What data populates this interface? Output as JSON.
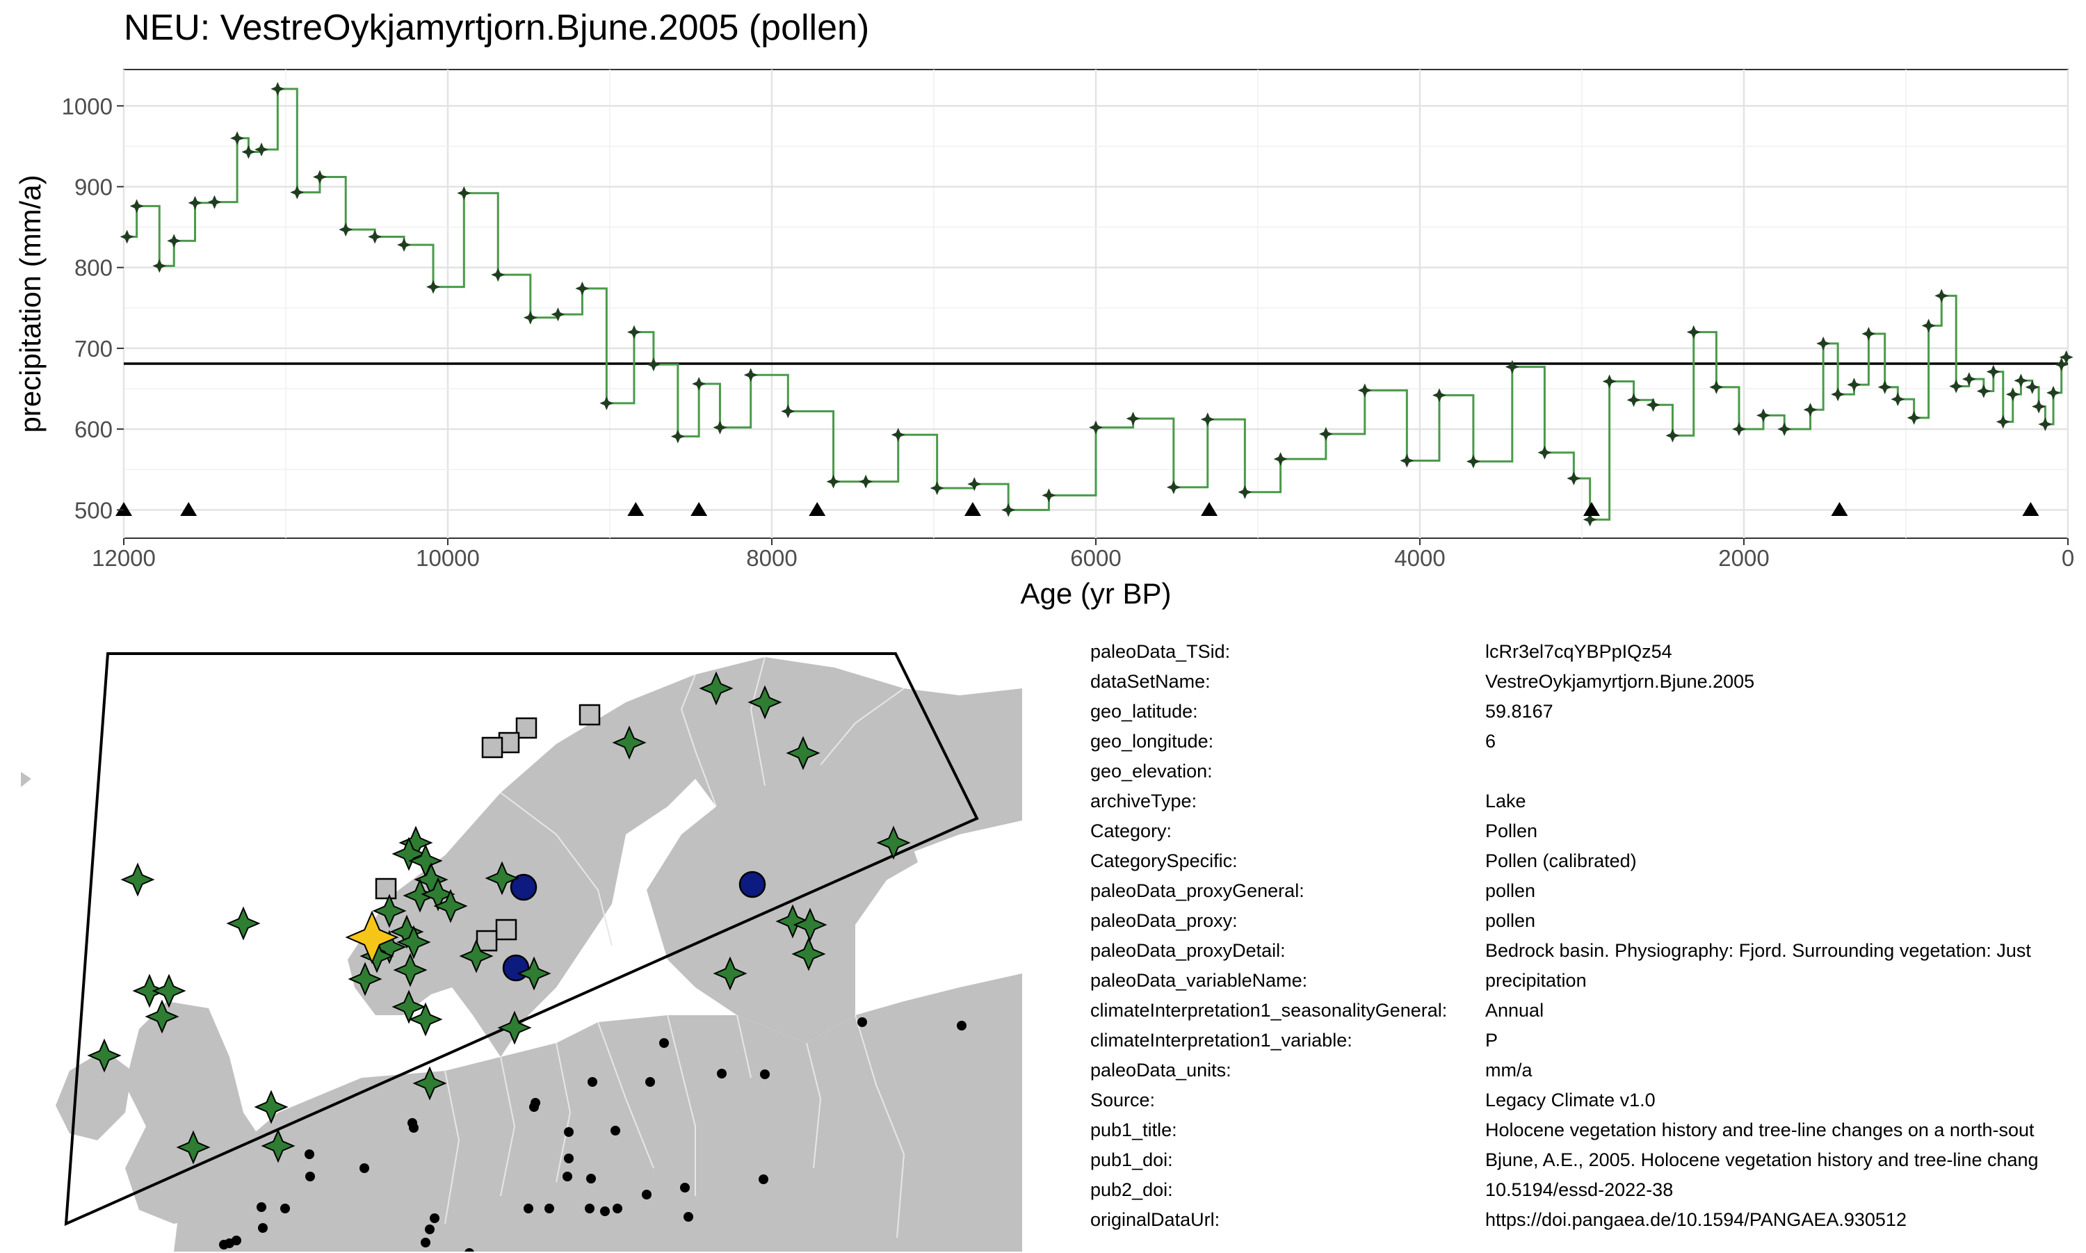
{
  "title": "NEU: VestreOykjamyrtjorn.Bjune.2005 (pollen)",
  "chart_data": {
    "type": "line",
    "style": "step",
    "xlabel": "Age (yr BP)",
    "ylabel": "precipitation (mm/a)",
    "xlim": [
      12000,
      0
    ],
    "ylim": [
      465,
      1045
    ],
    "x_reversed": true,
    "x_ticks": [
      12000,
      10000,
      8000,
      6000,
      4000,
      2000,
      0
    ],
    "y_ticks": [
      500,
      600,
      700,
      800,
      900,
      1000
    ],
    "grid": true,
    "mean_line": 681,
    "line_color": "#4a9a4a",
    "point_color": "#1f3d1f",
    "series": [
      {
        "x": [
          11980,
          11920,
          11780,
          11690,
          11560,
          11440,
          11300,
          11230,
          11150,
          11050,
          10930,
          10790,
          10630,
          10450,
          10270,
          10090,
          9900,
          9690,
          9490,
          9320,
          9170,
          9020,
          8850,
          8730,
          8580,
          8450,
          8320,
          8130,
          7900,
          7620,
          7420,
          7220,
          6980,
          6750,
          6540,
          6290,
          6000,
          5770,
          5520,
          5310,
          5080,
          4860,
          4580,
          4340,
          4080,
          3880,
          3670,
          3430,
          3230,
          3050,
          2950,
          2830,
          2680,
          2560,
          2440,
          2310,
          2170,
          2030,
          1880,
          1750,
          1590,
          1510,
          1420,
          1320,
          1230,
          1130,
          1050,
          950,
          860,
          780,
          690,
          610,
          520,
          460,
          400,
          340,
          290,
          220,
          180,
          140,
          90,
          40,
          10
        ],
        "values": [
          838,
          876,
          802,
          833,
          880,
          881,
          960,
          943,
          946,
          1021,
          893,
          912,
          847,
          838,
          828,
          776,
          892,
          791,
          738,
          742,
          774,
          632,
          720,
          680,
          591,
          656,
          602,
          667,
          622,
          535,
          535,
          593,
          527,
          532,
          500,
          518,
          602,
          613,
          528,
          612,
          522,
          563,
          594,
          648,
          561,
          642,
          560,
          677,
          571,
          539,
          488,
          659,
          636,
          630,
          592,
          720,
          652,
          600,
          617,
          600,
          624,
          706,
          643,
          655,
          718,
          652,
          637,
          614,
          728,
          765,
          653,
          662,
          647,
          671,
          609,
          643,
          660,
          652,
          628,
          606,
          645,
          680,
          689
        ]
      }
    ],
    "age_markers": [
      12000,
      11600,
      8840,
      8450,
      7720,
      6760,
      5300,
      2940,
      1410,
      230
    ]
  },
  "metadata": [
    {
      "key": "paleoData_TSid:",
      "value": "lcRr3el7cqYBPpIQz54"
    },
    {
      "key": "dataSetName:",
      "value": "VestreOykjamyrtjorn.Bjune.2005"
    },
    {
      "key": "geo_latitude:",
      "value": "59.8167"
    },
    {
      "key": "geo_longitude:",
      "value": "6"
    },
    {
      "key": "geo_elevation:",
      "value": ""
    },
    {
      "key": "archiveType:",
      "value": "Lake"
    },
    {
      "key": "Category:",
      "value": "Pollen"
    },
    {
      "key": "CategorySpecific:",
      "value": "Pollen (calibrated)"
    },
    {
      "key": "paleoData_proxyGeneral:",
      "value": "pollen"
    },
    {
      "key": "paleoData_proxy:",
      "value": "pollen"
    },
    {
      "key": "paleoData_proxyDetail:",
      "value": "Bedrock basin. Physiography: Fjord. Surrounding vegetation: Just"
    },
    {
      "key": "paleoData_variableName:",
      "value": "precipitation"
    },
    {
      "key": "climateInterpretation1_seasonalityGeneral:",
      "value": "Annual"
    },
    {
      "key": "climateInterpretation1_variable:",
      "value": "P"
    },
    {
      "key": "paleoData_units:",
      "value": "mm/a"
    },
    {
      "key": "Source:",
      "value": "Legacy Climate v1.0"
    },
    {
      "key": "pub1_title:",
      "value": "Holocene vegetation history and tree-line changes on a north-sout"
    },
    {
      "key": "pub1_doi:",
      "value": "Bjune, A.E., 2005. Holocene vegetation history and tree-line chang"
    },
    {
      "key": "pub2_doi:",
      "value": "10.5194/essd-2022-38"
    },
    {
      "key": "originalDataUrl:",
      "value": "https://doi.pangaea.de/10.1594/PANGAEA.930512"
    }
  ],
  "map_colors": {
    "land": "#c0c0c0",
    "border": "#e6e6e6",
    "star_site": "#2e7d32",
    "selected_site": "#f5c518",
    "square_site": "#bdbdbd",
    "circle_site": "#0d1a80",
    "dot_site": "#000000"
  }
}
